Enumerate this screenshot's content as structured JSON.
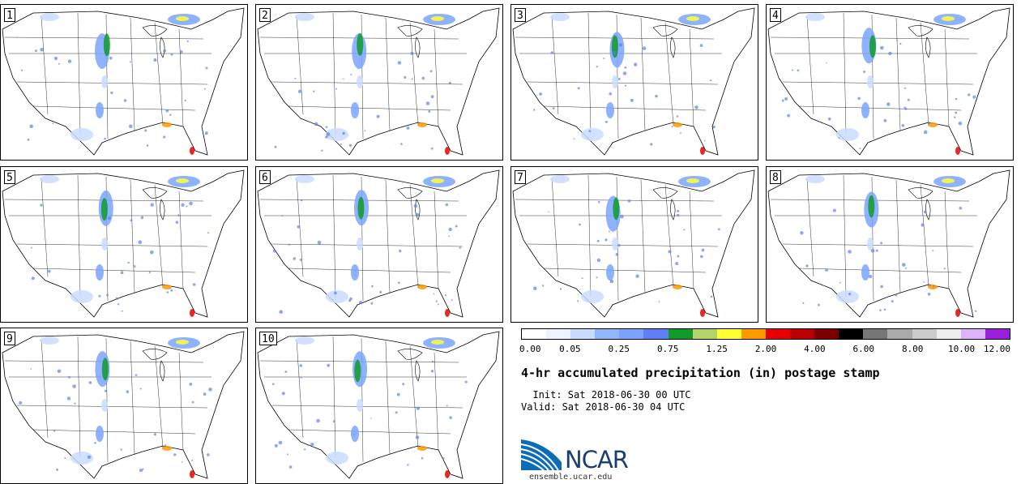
{
  "stamps": [
    {
      "label": "1"
    },
    {
      "label": "2"
    },
    {
      "label": "3"
    },
    {
      "label": "4"
    },
    {
      "label": "5"
    },
    {
      "label": "6"
    },
    {
      "label": "7"
    },
    {
      "label": "8"
    },
    {
      "label": "9"
    },
    {
      "label": "10"
    }
  ],
  "colorbar": {
    "colors": [
      "#ffffff",
      "#eef3ff",
      "#c9dcff",
      "#90b8ff",
      "#7aa4ff",
      "#5f80f4",
      "#119a2a",
      "#b5d36a",
      "#ffff33",
      "#ff9900",
      "#e60000",
      "#b80000",
      "#7a0000",
      "#000000",
      "#777777",
      "#aaaaaa",
      "#cccccc",
      "#eeeeee",
      "#ddb3ff",
      "#9a1fdd"
    ],
    "tick_labels": [
      "0.00",
      "0.05",
      "0.25",
      "0.75",
      "1.25",
      "2.00",
      "4.00",
      "6.00",
      "8.00",
      "10.00",
      "12.00"
    ]
  },
  "title": "4-hr accumulated precipitation (in) postage stamp",
  "init_line": "  Init: Sat 2018-06-30 00 UTC",
  "valid_line": "Valid: Sat 2018-06-30 04 UTC",
  "logo": {
    "name": "NCAR",
    "url": "ensemble.ucar.edu"
  },
  "map_colors": {
    "light": "#c9dcff",
    "medium": "#7aa4ff",
    "strong": "#5f80f4",
    "green": "#119a2a",
    "yellow": "#ffff33",
    "orange": "#ff9900",
    "red": "#e60000"
  }
}
